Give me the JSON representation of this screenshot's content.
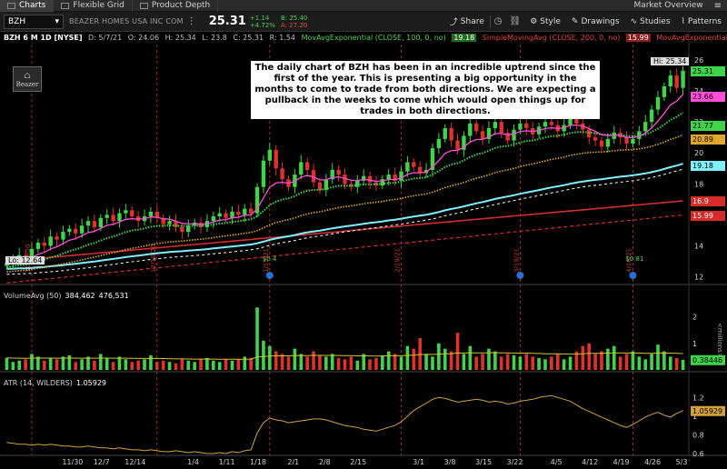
{
  "topbar": {
    "tabs": [
      {
        "label": "Charts",
        "active": true
      },
      {
        "label": "Flexible Grid",
        "active": false
      },
      {
        "label": "Product Depth",
        "active": false
      }
    ],
    "right_label": "Market Overview"
  },
  "toolbar": {
    "symbol": "BZH",
    "company": "BEAZER HOMES USA INC COM",
    "price": "25.31",
    "change_abs": "+1.14",
    "change_pct": "+4.72%",
    "bid": "B: 25.40",
    "ask": "A: 27.20",
    "share": "Share",
    "style": "Style",
    "drawings": "Drawings",
    "studies": "Studies",
    "patterns": "Patterns"
  },
  "header": {
    "title": "BZH 6 M 1D [NYSE]",
    "date": "D: 5/7/21",
    "open": "O: 24.06",
    "high": "H: 25.34",
    "low": "L: 23.8",
    "close": "C: 25.31",
    "range": "R: 1.54",
    "ema_label": "MovAvgExponential (CLOSE, 100, 0, no)",
    "ema_value": "19.18",
    "sma_label": "SimpleMovingAvg (CLOSE, 200, 0, no)",
    "sma_value": "15.99",
    "ema2_label": "MovAvgExponential"
  },
  "annotation": "The daily chart of BZH has been in an incredible uptrend since the first of the year. This is presenting a big opportunity in the months to come to trade from both directions. We are expecting a pullback in the weeks to come which would open things up for trades in both directions.",
  "logo_text": "Beazer",
  "hi_label": "Hi: 25.34",
  "lo_label": "Lo: 12.64",
  "price_axis": [
    "26",
    "24",
    "22",
    "20",
    "18",
    "16",
    "14",
    "12"
  ],
  "price_tags": [
    {
      "value": "25.31",
      "color": "#3fd44a"
    },
    {
      "value": "23.66",
      "color": "#ff4fd8"
    },
    {
      "value": "21.77",
      "color": "#3fd44a"
    },
    {
      "value": "20.89",
      "color": "#e3a62c"
    },
    {
      "value": "19.18",
      "color": "#7ff0ff"
    },
    {
      "value": "16.9",
      "color": "#d52b2b"
    },
    {
      "value": "15.99",
      "color": "#d52b2b"
    }
  ],
  "event_labels": [
    {
      "text": "11/19/20"
    },
    {
      "text": "12/18/20"
    },
    {
      "text": "1/15/21"
    },
    {
      "text": "2/19/21"
    },
    {
      "text": "3/19/21"
    },
    {
      "text": "4/16/21"
    }
  ],
  "dividend_labels": [
    "$0.4",
    "$0.81"
  ],
  "volume": {
    "label": "VolumeAvg (50)",
    "value1": "384,462",
    "value2": "476,531",
    "axis": [
      "2",
      "1"
    ],
    "tag": "0.38446",
    "unit": "<millions>"
  },
  "atr": {
    "label": "ATR (14, WILDERS)",
    "value": "1.05929",
    "axis": [
      "1.2",
      "1",
      "0.8",
      "0.6"
    ],
    "tag": "1.05929"
  },
  "x_axis": [
    "11/30",
    "12/7",
    "12/14",
    "1/4",
    "1/11",
    "1/18",
    "2/1",
    "2/8",
    "2/15",
    "3/1",
    "3/8",
    "3/15",
    "3/22",
    "4/5",
    "4/12",
    "4/19",
    "4/26",
    "5/3"
  ],
  "colors": {
    "up": "#3fd44a",
    "down": "#e0312b",
    "ema_fast": "#ff4fd8",
    "ema_green": "#3fd44a",
    "ema_orange": "#e3a62c",
    "ema_cyan": "#7ff0ff",
    "sma_red": "#d52b2b",
    "atr": "#d4a23a"
  },
  "chart_data": {
    "type": "candlestick",
    "closes": [
      12.9,
      13.1,
      13.4,
      13.2,
      13.8,
      14.2,
      14.0,
      14.6,
      14.4,
      14.9,
      15.1,
      14.8,
      15.3,
      15.6,
      15.2,
      15.8,
      16.0,
      15.6,
      16.1,
      16.3,
      15.9,
      15.6,
      15.9,
      16.2,
      15.8,
      15.4,
      15.6,
      15.2,
      14.9,
      15.3,
      15.5,
      15.2,
      15.6,
      15.9,
      16.1,
      15.8,
      16.2,
      16.0,
      16.4,
      16.1,
      17.8,
      19.5,
      20.2,
      19.0,
      18.3,
      17.8,
      18.6,
      19.4,
      18.9,
      18.1,
      17.6,
      18.3,
      18.9,
      18.6,
      18.0,
      17.8,
      18.2,
      18.5,
      18.1,
      17.9,
      18.3,
      18.6,
      18.2,
      18.8,
      19.4,
      19.1,
      18.7,
      18.9,
      20.3,
      20.9,
      21.6,
      20.8,
      20.2,
      21.1,
      21.9,
      21.4,
      20.9,
      21.6,
      22.0,
      21.3,
      20.8,
      21.5,
      21.9,
      21.6,
      21.2,
      21.7,
      22.0,
      21.8,
      21.4,
      21.8,
      22.3,
      21.9,
      21.5,
      21.0,
      20.8,
      20.4,
      20.9,
      21.3,
      21.0,
      20.6,
      20.9,
      21.4,
      22.0,
      22.8,
      23.6,
      24.3,
      25.0,
      24.2,
      25.31
    ],
    "volume_millions": [
      0.45,
      0.3,
      0.35,
      0.4,
      0.6,
      0.5,
      0.35,
      0.45,
      0.4,
      0.5,
      0.55,
      0.3,
      0.4,
      0.5,
      0.35,
      0.6,
      0.45,
      0.3,
      0.5,
      0.4,
      0.3,
      0.35,
      0.4,
      0.55,
      0.3,
      0.35,
      0.3,
      0.25,
      0.4,
      0.35,
      0.3,
      0.4,
      0.45,
      0.35,
      0.3,
      0.4,
      0.35,
      0.4,
      0.5,
      0.45,
      2.35,
      1.1,
      0.9,
      0.7,
      0.6,
      0.5,
      0.8,
      0.6,
      0.5,
      0.7,
      0.55,
      0.5,
      0.6,
      0.45,
      0.4,
      0.5,
      0.35,
      0.6,
      0.4,
      0.45,
      0.55,
      0.7,
      0.6,
      0.5,
      0.9,
      0.8,
      1.2,
      0.6,
      0.5,
      1.0,
      0.8,
      0.7,
      1.4,
      0.6,
      0.9,
      0.5,
      0.6,
      0.8,
      0.7,
      0.5,
      0.6,
      0.55,
      0.5,
      0.6,
      0.5,
      0.45,
      0.4,
      0.5,
      0.6,
      0.4,
      0.5,
      0.7,
      0.9,
      1.0,
      0.6,
      0.7,
      0.8,
      0.9,
      0.5,
      0.6,
      0.7,
      0.5,
      0.4,
      0.6,
      0.95,
      0.7,
      0.5,
      0.45,
      0.38
    ],
    "atr": [
      0.72,
      0.71,
      0.7,
      0.7,
      0.69,
      0.7,
      0.69,
      0.7,
      0.69,
      0.68,
      0.68,
      0.67,
      0.67,
      0.68,
      0.67,
      0.66,
      0.66,
      0.65,
      0.66,
      0.65,
      0.64,
      0.64,
      0.63,
      0.64,
      0.63,
      0.62,
      0.62,
      0.63,
      0.62,
      0.61,
      0.62,
      0.61,
      0.6,
      0.6,
      0.61,
      0.6,
      0.62,
      0.61,
      0.63,
      0.64,
      0.82,
      0.93,
      0.98,
      0.96,
      0.95,
      0.93,
      0.94,
      0.95,
      0.96,
      0.97,
      0.97,
      0.96,
      0.94,
      0.92,
      0.9,
      0.89,
      0.88,
      0.86,
      0.85,
      0.84,
      0.86,
      0.88,
      0.9,
      0.94,
      1.0,
      1.06,
      1.1,
      1.14,
      1.18,
      1.2,
      1.19,
      1.17,
      1.15,
      1.16,
      1.17,
      1.18,
      1.17,
      1.15,
      1.16,
      1.15,
      1.13,
      1.14,
      1.16,
      1.17,
      1.18,
      1.2,
      1.21,
      1.22,
      1.2,
      1.18,
      1.16,
      1.12,
      1.08,
      1.05,
      1.02,
      0.99,
      0.96,
      0.93,
      0.9,
      0.88,
      0.91,
      0.95,
      0.99,
      1.02,
      1.04,
      1.01,
      0.99,
      1.03,
      1.06
    ],
    "ylim": [
      11.5,
      27
    ]
  }
}
